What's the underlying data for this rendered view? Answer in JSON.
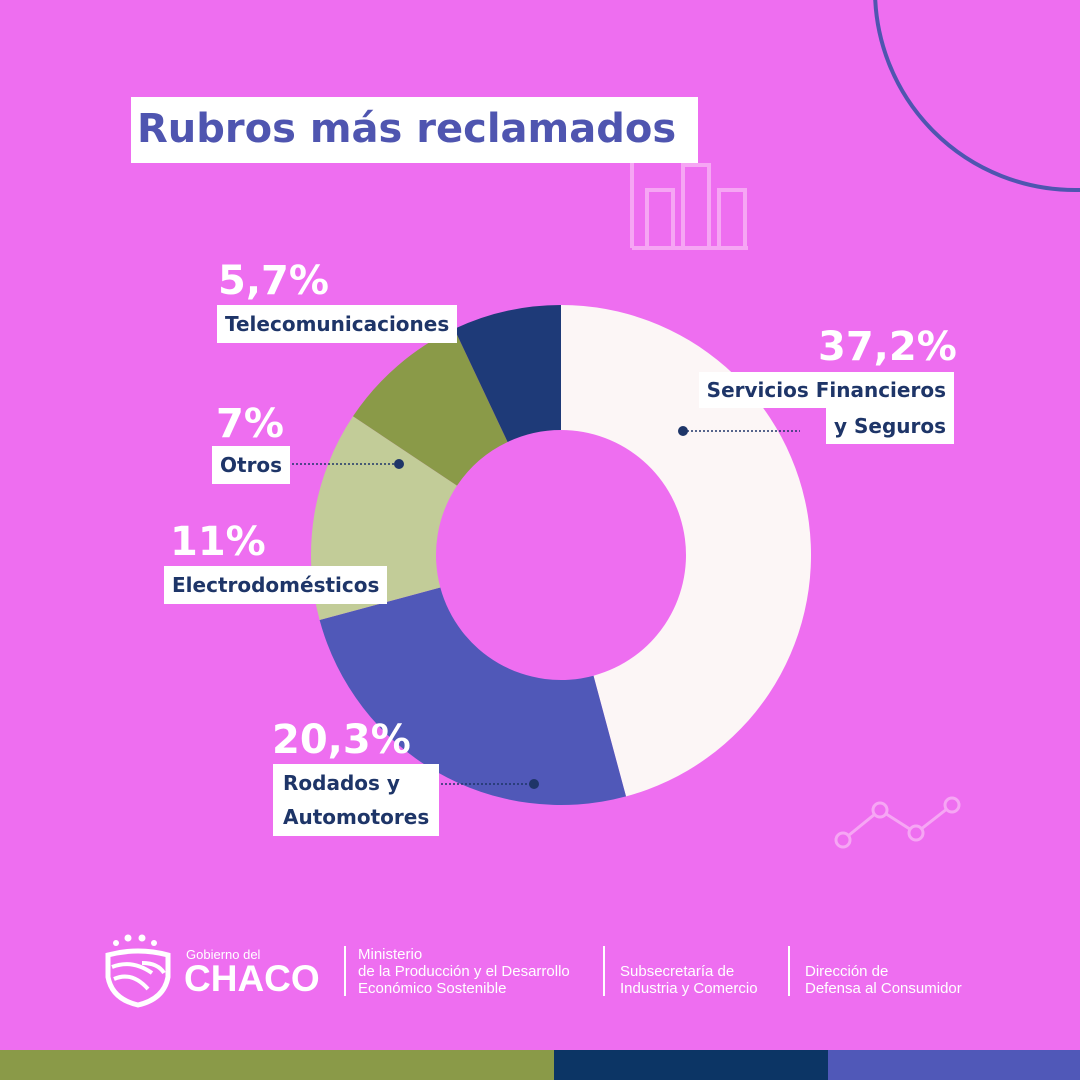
{
  "title": "Rubros más reclamados",
  "chart_data": {
    "type": "pie",
    "subtype": "donut",
    "title": "Rubros más reclamados",
    "slices": [
      {
        "label": "Servicios Financieros y Seguros",
        "value": 37.2,
        "value_label": "37,2%",
        "color": "#fcf6f6"
      },
      {
        "label": "Rodados y Automotores",
        "value": 20.3,
        "value_label": "20,3%",
        "color": "#5058b8"
      },
      {
        "label": "Electrodomésticos",
        "value": 11,
        "value_label": "11%",
        "color": "#c2cc98"
      },
      {
        "label": "Otros",
        "value": 7,
        "value_label": "7%",
        "color": "#8a9a48"
      },
      {
        "label": "Telecomunicaciones",
        "value": 5.7,
        "value_label": "5,7%",
        "color": "#1e3a78"
      }
    ],
    "label_lines": {
      "servicios_1": "Servicios Financieros",
      "servicios_2": "y Seguros",
      "rodados_1": "Rodados y",
      "rodados_2": "Automotores"
    },
    "legend": "none"
  },
  "footer": {
    "gov_small": "Gobierno del",
    "gov_big": "CHACO",
    "ministry": [
      "Ministerio",
      "de la Producción y el Desarrollo",
      "Económico Sostenible"
    ],
    "subsecretaria": [
      "Subsecretaría de",
      "Industria y Comercio"
    ],
    "direccion": [
      "Dirección de",
      "Defensa al Consumidor"
    ]
  },
  "colors": {
    "background": "#ee6ef0",
    "title": "#4f55b0",
    "label_text": "#1e3568",
    "bar_olive": "#8a9a48",
    "bar_navy": "#0c3565",
    "bar_blue": "#5058b8"
  }
}
